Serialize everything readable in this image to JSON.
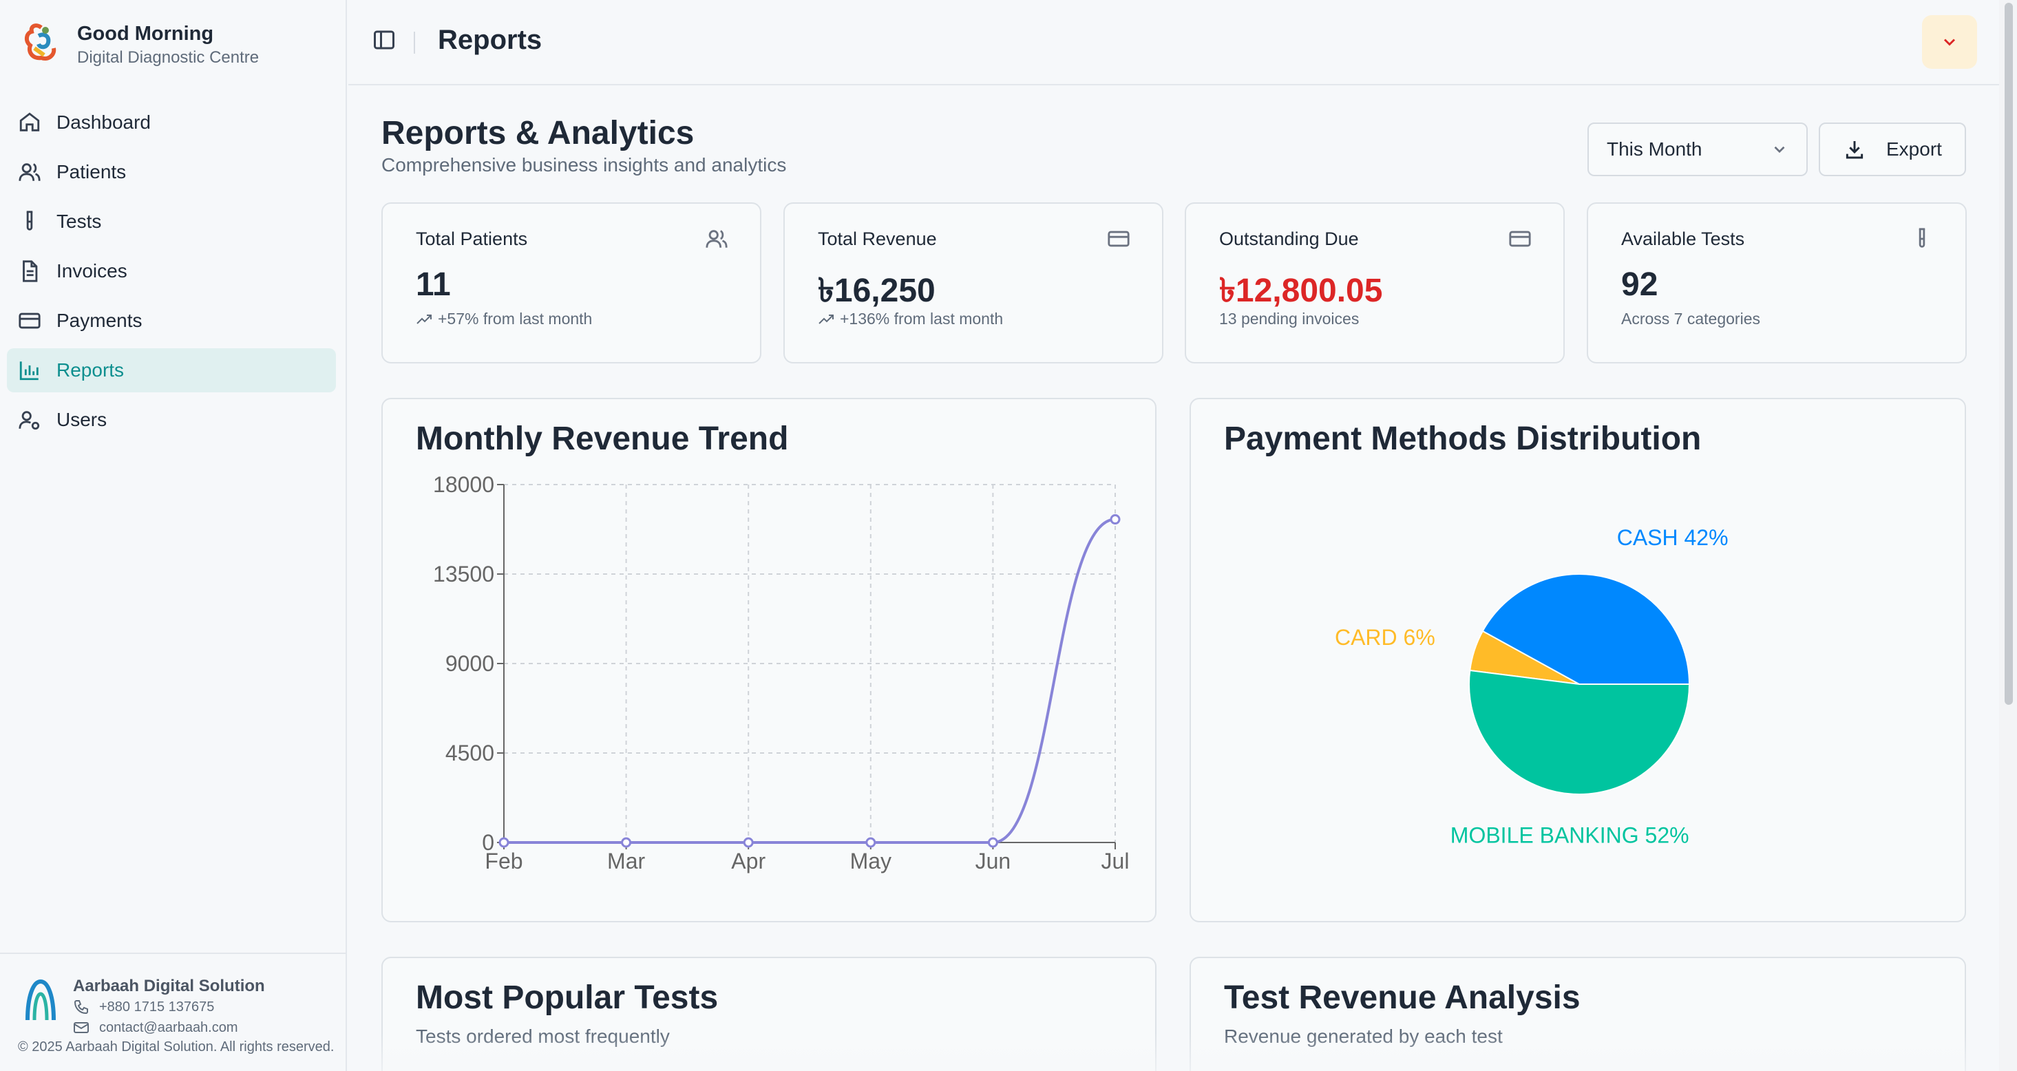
{
  "sidebar": {
    "brand_title": "Good Morning",
    "brand_subtitle": "Digital Diagnostic Centre",
    "items": [
      {
        "label": "Dashboard",
        "icon": "home-icon"
      },
      {
        "label": "Patients",
        "icon": "users-icon"
      },
      {
        "label": "Tests",
        "icon": "test-tube-icon"
      },
      {
        "label": "Invoices",
        "icon": "file-text-icon"
      },
      {
        "label": "Payments",
        "icon": "credit-card-icon"
      },
      {
        "label": "Reports",
        "icon": "bar-chart-icon",
        "active": true
      },
      {
        "label": "Users",
        "icon": "user-cog-icon"
      }
    ],
    "footer": {
      "company": "Aarbaah Digital Solution",
      "phone": "+880 1715 137675",
      "email": "contact@aarbaah.com",
      "copyright": "© 2025 Aarbaah Digital Solution. All rights reserved."
    }
  },
  "header": {
    "title": "Reports",
    "user_menu_icon": "chevron-down-icon"
  },
  "page": {
    "title": "Reports & Analytics",
    "subtitle": "Comprehensive business insights and analytics",
    "period_select": "This Month",
    "export_label": "Export"
  },
  "stats": [
    {
      "label": "Total Patients",
      "value": "11",
      "note": "+57% from last month",
      "icon": "users-icon",
      "trend": true,
      "value_color": "#1f2937"
    },
    {
      "label": "Total Revenue",
      "value": "৳16,250",
      "note": "+136% from last month",
      "icon": "credit-card-icon",
      "trend": true,
      "value_color": "#1f2937"
    },
    {
      "label": "Outstanding Due",
      "value": "৳12,800.05",
      "note": "13 pending invoices",
      "icon": "credit-card-icon",
      "trend": false,
      "value_color": "#dc2626"
    },
    {
      "label": "Available Tests",
      "value": "92",
      "note": "Across 7 categories",
      "icon": "test-tube-icon",
      "trend": false,
      "value_color": "#1f2937"
    }
  ],
  "cards": {
    "revenue_trend_title": "Monthly Revenue Trend",
    "payment_methods_title": "Payment Methods Distribution",
    "popular_tests_title": "Most Popular Tests",
    "popular_tests_subtitle": "Tests ordered most frequently",
    "test_revenue_title": "Test Revenue Analysis",
    "test_revenue_subtitle": "Revenue generated by each test"
  },
  "chart_data": [
    {
      "type": "line",
      "title": "Monthly Revenue Trend",
      "x": [
        "Feb",
        "Mar",
        "Apr",
        "May",
        "Jun",
        "Jul"
      ],
      "y_ticks": [
        0,
        4500,
        9000,
        13500,
        18000
      ],
      "ylim": [
        0,
        18000
      ],
      "series": [
        {
          "values": [
            0,
            0,
            0,
            0,
            0,
            16250
          ],
          "color": "#8884d8"
        }
      ],
      "grid": true
    },
    {
      "type": "pie",
      "title": "Payment Methods Distribution",
      "slices": [
        {
          "label": "CASH",
          "value": 42,
          "color": "#0088fe"
        },
        {
          "label": "CARD",
          "value": 6,
          "color": "#ffbb28"
        },
        {
          "label": "MOBILE BANKING",
          "value": 52,
          "color": "#00c49f"
        }
      ]
    }
  ]
}
